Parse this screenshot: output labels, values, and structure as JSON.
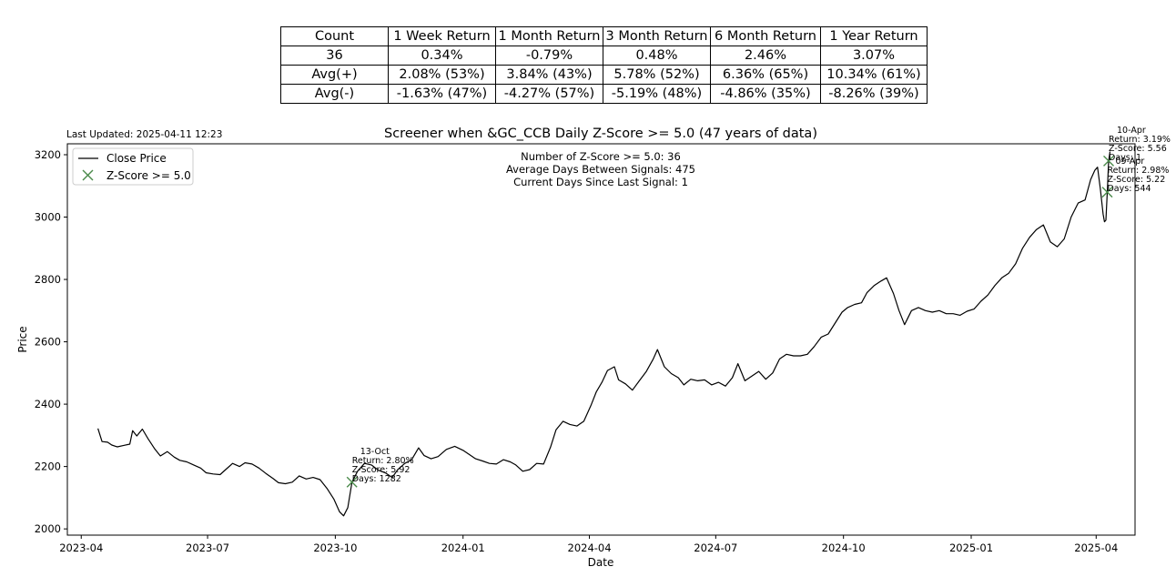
{
  "stats_table": {
    "columns": [
      "Count",
      "1 Week Return",
      "1 Month Return",
      "3 Month Return",
      "6 Month Return",
      "1 Year Return"
    ],
    "rows": [
      [
        "36",
        "0.34%",
        "-0.79%",
        "0.48%",
        "2.46%",
        "3.07%"
      ],
      [
        "Avg(+)",
        "2.08% (53%)",
        "3.84% (43%)",
        "5.78% (52%)",
        "6.36% (65%)",
        "10.34% (61%)"
      ],
      [
        "Avg(-)",
        "-1.63% (47%)",
        "-4.27% (57%)",
        "-5.19% (48%)",
        "-4.86% (35%)",
        "-8.26% (39%)"
      ]
    ]
  },
  "last_updated": "Last Updated: 2025-04-11 12:23",
  "chart_data": {
    "type": "line",
    "title": "Screener when &GC_CCB Daily Z-Score >= 5.0 (47 years of data)",
    "xlabel": "Date",
    "ylabel": "Price",
    "xlim": [
      "2023-03-22",
      "2025-04-29"
    ],
    "ylim": [
      1980,
      3235
    ],
    "x_ticks": [
      "2023-04",
      "2023-07",
      "2023-10",
      "2024-01",
      "2024-04",
      "2024-07",
      "2024-10",
      "2025-01",
      "2025-04"
    ],
    "y_ticks": [
      2000,
      2200,
      2400,
      2600,
      2800,
      3000,
      3200
    ],
    "grid": false,
    "legend_position": "top-left",
    "legend": [
      "Close Price",
      "Z-Score >= 5.0"
    ],
    "colors": {
      "line": "#000000",
      "marker": "#4a8a4a"
    },
    "info_text": [
      "Number of Z-Score >= 5.0: 36",
      "Average Days Between Signals: 475",
      "Current Days Since Last Signal: 1"
    ],
    "series": [
      {
        "name": "Close Price",
        "points": [
          [
            "2023-04-13",
            2322
          ],
          [
            "2023-04-16",
            2280
          ],
          [
            "2023-04-20",
            2278
          ],
          [
            "2023-04-23",
            2269
          ],
          [
            "2023-04-27",
            2263
          ],
          [
            "2023-05-02",
            2268
          ],
          [
            "2023-05-06",
            2272
          ],
          [
            "2023-05-08",
            2315
          ],
          [
            "2023-05-11",
            2298
          ],
          [
            "2023-05-15",
            2320
          ],
          [
            "2023-05-19",
            2290
          ],
          [
            "2023-05-24",
            2256
          ],
          [
            "2023-05-28",
            2234
          ],
          [
            "2023-06-02",
            2248
          ],
          [
            "2023-06-07",
            2230
          ],
          [
            "2023-06-11",
            2220
          ],
          [
            "2023-06-16",
            2215
          ],
          [
            "2023-06-21",
            2205
          ],
          [
            "2023-06-26",
            2195
          ],
          [
            "2023-06-30",
            2180
          ],
          [
            "2023-07-05",
            2176
          ],
          [
            "2023-07-10",
            2174
          ],
          [
            "2023-07-14",
            2190
          ],
          [
            "2023-07-19",
            2210
          ],
          [
            "2023-07-24",
            2200
          ],
          [
            "2023-07-28",
            2212
          ],
          [
            "2023-08-02",
            2208
          ],
          [
            "2023-08-07",
            2195
          ],
          [
            "2023-08-12",
            2178
          ],
          [
            "2023-08-17",
            2162
          ],
          [
            "2023-08-21",
            2148
          ],
          [
            "2023-08-26",
            2145
          ],
          [
            "2023-08-31",
            2150
          ],
          [
            "2023-09-05",
            2170
          ],
          [
            "2023-09-10",
            2160
          ],
          [
            "2023-09-15",
            2165
          ],
          [
            "2023-09-20",
            2158
          ],
          [
            "2023-09-25",
            2130
          ],
          [
            "2023-09-30",
            2095
          ],
          [
            "2023-10-04",
            2055
          ],
          [
            "2023-10-07",
            2042
          ],
          [
            "2023-10-10",
            2068
          ],
          [
            "2023-10-13",
            2150
          ],
          [
            "2023-10-17",
            2185
          ],
          [
            "2023-10-22",
            2210
          ],
          [
            "2023-10-27",
            2205
          ],
          [
            "2023-11-01",
            2188
          ],
          [
            "2023-11-06",
            2180
          ],
          [
            "2023-11-11",
            2165
          ],
          [
            "2023-11-15",
            2190
          ],
          [
            "2023-11-20",
            2210
          ],
          [
            "2023-11-25",
            2222
          ],
          [
            "2023-11-30",
            2260
          ],
          [
            "2023-12-04",
            2235
          ],
          [
            "2023-12-09",
            2225
          ],
          [
            "2023-12-14",
            2232
          ],
          [
            "2023-12-20",
            2255
          ],
          [
            "2023-12-26",
            2265
          ],
          [
            "2024-01-01",
            2252
          ],
          [
            "2024-01-05",
            2240
          ],
          [
            "2024-01-10",
            2225
          ],
          [
            "2024-01-15",
            2218
          ],
          [
            "2024-01-20",
            2210
          ],
          [
            "2024-01-25",
            2208
          ],
          [
            "2024-01-30",
            2222
          ],
          [
            "2024-02-04",
            2215
          ],
          [
            "2024-02-08",
            2205
          ],
          [
            "2024-02-13",
            2185
          ],
          [
            "2024-02-18",
            2190
          ],
          [
            "2024-02-23",
            2210
          ],
          [
            "2024-02-28",
            2208
          ],
          [
            "2024-03-04",
            2262
          ],
          [
            "2024-03-08",
            2318
          ],
          [
            "2024-03-13",
            2345
          ],
          [
            "2024-03-18",
            2335
          ],
          [
            "2024-03-23",
            2330
          ],
          [
            "2024-03-28",
            2345
          ],
          [
            "2024-04-02",
            2395
          ],
          [
            "2024-04-06",
            2440
          ],
          [
            "2024-04-10",
            2470
          ],
          [
            "2024-04-14",
            2508
          ],
          [
            "2024-04-19",
            2520
          ],
          [
            "2024-04-22",
            2478
          ],
          [
            "2024-04-27",
            2465
          ],
          [
            "2024-05-02",
            2445
          ],
          [
            "2024-05-07",
            2475
          ],
          [
            "2024-05-12",
            2505
          ],
          [
            "2024-05-17",
            2545
          ],
          [
            "2024-05-20",
            2575
          ],
          [
            "2024-05-25",
            2520
          ],
          [
            "2024-05-30",
            2498
          ],
          [
            "2024-06-04",
            2485
          ],
          [
            "2024-06-08",
            2462
          ],
          [
            "2024-06-13",
            2480
          ],
          [
            "2024-06-18",
            2475
          ],
          [
            "2024-06-23",
            2478
          ],
          [
            "2024-06-28",
            2462
          ],
          [
            "2024-07-03",
            2470
          ],
          [
            "2024-07-08",
            2458
          ],
          [
            "2024-07-13",
            2485
          ],
          [
            "2024-07-17",
            2530
          ],
          [
            "2024-07-22",
            2475
          ],
          [
            "2024-07-27",
            2490
          ],
          [
            "2024-08-01",
            2505
          ],
          [
            "2024-08-06",
            2480
          ],
          [
            "2024-08-11",
            2500
          ],
          [
            "2024-08-16",
            2545
          ],
          [
            "2024-08-21",
            2560
          ],
          [
            "2024-08-26",
            2555
          ],
          [
            "2024-08-31",
            2555
          ],
          [
            "2024-09-05",
            2560
          ],
          [
            "2024-09-10",
            2585
          ],
          [
            "2024-09-15",
            2615
          ],
          [
            "2024-09-20",
            2625
          ],
          [
            "2024-09-25",
            2660
          ],
          [
            "2024-09-30",
            2695
          ],
          [
            "2024-10-04",
            2710
          ],
          [
            "2024-10-09",
            2720
          ],
          [
            "2024-10-14",
            2725
          ],
          [
            "2024-10-18",
            2758
          ],
          [
            "2024-10-23",
            2780
          ],
          [
            "2024-10-28",
            2795
          ],
          [
            "2024-11-01",
            2805
          ],
          [
            "2024-11-06",
            2755
          ],
          [
            "2024-11-10",
            2700
          ],
          [
            "2024-11-14",
            2655
          ],
          [
            "2024-11-19",
            2700
          ],
          [
            "2024-11-24",
            2710
          ],
          [
            "2024-11-29",
            2700
          ],
          [
            "2024-12-04",
            2695
          ],
          [
            "2024-12-09",
            2700
          ],
          [
            "2024-12-14",
            2690
          ],
          [
            "2024-12-19",
            2690
          ],
          [
            "2024-12-24",
            2685
          ],
          [
            "2024-12-29",
            2698
          ],
          [
            "2025-01-03",
            2705
          ],
          [
            "2025-01-08",
            2730
          ],
          [
            "2025-01-13",
            2750
          ],
          [
            "2025-01-18",
            2780
          ],
          [
            "2025-01-23",
            2805
          ],
          [
            "2025-01-28",
            2820
          ],
          [
            "2025-02-02",
            2850
          ],
          [
            "2025-02-07",
            2900
          ],
          [
            "2025-02-12",
            2935
          ],
          [
            "2025-02-17",
            2960
          ],
          [
            "2025-02-22",
            2975
          ],
          [
            "2025-02-27",
            2920
          ],
          [
            "2025-03-04",
            2905
          ],
          [
            "2025-03-09",
            2930
          ],
          [
            "2025-03-14",
            3000
          ],
          [
            "2025-03-19",
            3045
          ],
          [
            "2025-03-24",
            3055
          ],
          [
            "2025-03-28",
            3120
          ],
          [
            "2025-03-31",
            3150
          ],
          [
            "2025-04-02",
            3160
          ],
          [
            "2025-04-04",
            3090
          ],
          [
            "2025-04-06",
            3010
          ],
          [
            "2025-04-07",
            2985
          ],
          [
            "2025-04-08",
            2990
          ],
          [
            "2025-04-09",
            3080
          ],
          [
            "2025-04-10",
            3180
          ],
          [
            "2025-04-11",
            3210
          ]
        ]
      },
      {
        "name": "Z-Score >= 5.0",
        "type": "scatter",
        "points": [
          [
            "2023-10-13",
            2150
          ],
          [
            "2025-04-09",
            3080
          ],
          [
            "2025-04-10",
            3180
          ]
        ]
      }
    ],
    "annotations": [
      {
        "date": "2023-10-13",
        "y": 2150,
        "lines": [
          "13-Oct",
          "Return: 2.80%",
          "Z-Score: 5.92",
          "Days: 1282"
        ]
      },
      {
        "date": "2025-04-09",
        "y": 3080,
        "lines": [
          "09-Apr",
          "Return: 2.98%",
          "Z-Score: 5.22",
          "Days: 544"
        ]
      },
      {
        "date": "2025-04-10",
        "y": 3180,
        "lines": [
          "10-Apr",
          "Return: 3.19%",
          "Z-Score: 5.56",
          "Days: 1"
        ]
      }
    ]
  }
}
